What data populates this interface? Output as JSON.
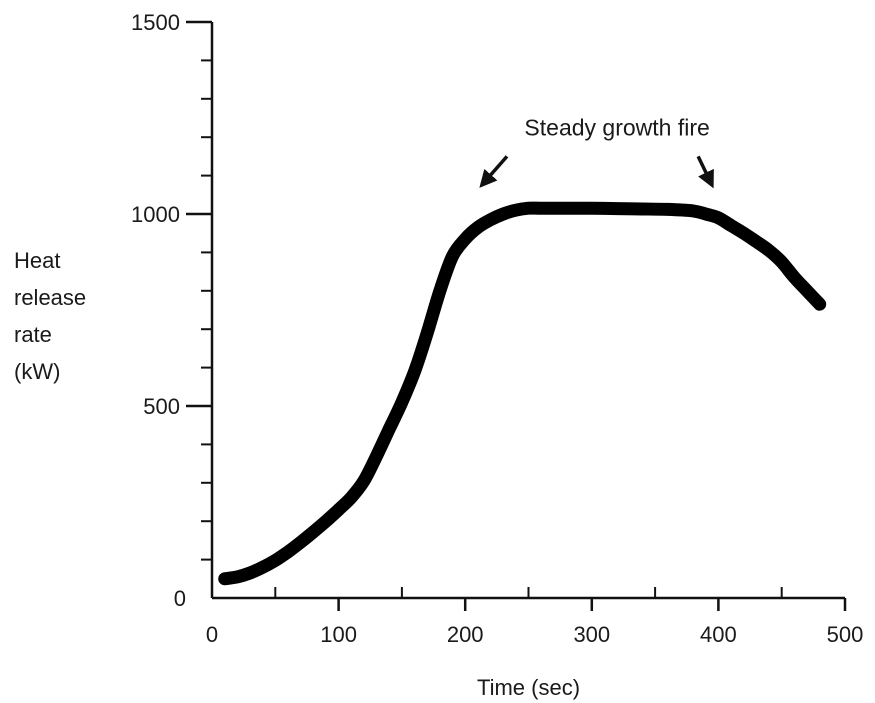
{
  "chart_data": {
    "type": "line",
    "title": "",
    "xlabel": "Time (sec)",
    "ylabel_lines": [
      "Heat",
      "release",
      "rate",
      "(kW)"
    ],
    "xlim": [
      0,
      500
    ],
    "ylim": [
      0,
      1500
    ],
    "x_ticks": [
      0,
      100,
      200,
      300,
      400,
      500
    ],
    "x_minor_step": 50,
    "y_ticks": [
      0,
      500,
      1000,
      1500
    ],
    "y_minor_step": 100,
    "grid": false,
    "legend": "none",
    "line_color": "#000000",
    "series": [
      {
        "x": [
          10,
          20,
          30,
          40,
          50,
          60,
          70,
          80,
          90,
          100,
          110,
          120,
          130,
          140,
          150,
          160,
          170,
          180,
          190,
          200,
          210,
          220,
          230,
          240,
          250,
          260,
          280,
          300,
          320,
          340,
          360,
          380,
          390,
          400,
          410,
          420,
          430,
          440,
          450,
          460,
          470,
          480
        ],
        "y": [
          50,
          55,
          65,
          80,
          98,
          120,
          145,
          172,
          200,
          230,
          262,
          305,
          370,
          440,
          510,
          590,
          690,
          800,
          890,
          935,
          965,
          985,
          1000,
          1010,
          1015,
          1015,
          1015,
          1015,
          1014,
          1013,
          1012,
          1008,
          1000,
          990,
          970,
          950,
          928,
          905,
          875,
          835,
          800,
          765
        ]
      }
    ],
    "annotations": [
      {
        "text": "Steady growth fire",
        "anchor": [
          320,
          1205
        ],
        "arrows": [
          {
            "from": [
              233,
              1150
            ],
            "to": [
              213,
              1075
            ]
          },
          {
            "from": [
              384,
              1150
            ],
            "to": [
              395,
              1075
            ]
          }
        ]
      }
    ]
  }
}
